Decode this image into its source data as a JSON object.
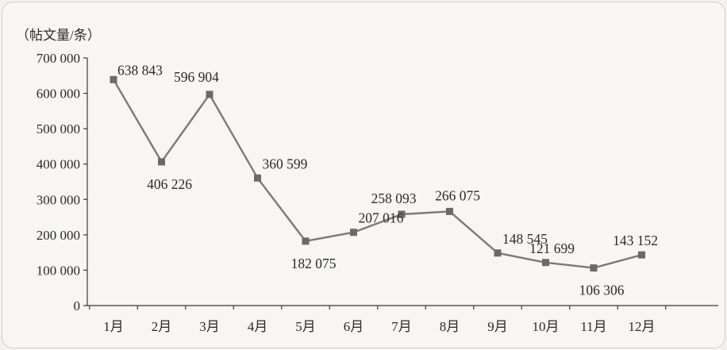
{
  "chart_data": {
    "type": "line",
    "unit_label": "（帖文量/条）",
    "categories": [
      "1月",
      "2月",
      "3月",
      "4月",
      "5月",
      "6月",
      "7月",
      "8月",
      "9月",
      "10月",
      "11月",
      "12月"
    ],
    "values": [
      638843,
      406226,
      596904,
      360599,
      182075,
      207016,
      258093,
      266075,
      148545,
      121699,
      106306,
      143152
    ],
    "data_labels": [
      "638 843",
      "406 226",
      "596 904",
      "360 599",
      "182 075",
      "207 016",
      "258 093",
      "266 075",
      "148 545",
      "121 699",
      "106 306",
      "143 152"
    ],
    "y_ticks": [
      0,
      100000,
      200000,
      300000,
      400000,
      500000,
      600000,
      700000
    ],
    "y_tick_labels": [
      "0",
      "100 000",
      "200 000",
      "300 000",
      "400 000",
      "500 000",
      "600 000",
      "700 000"
    ],
    "ylim": [
      0,
      700000
    ],
    "grid": false,
    "legend": "none",
    "colors": {
      "line": "#7a7a7a",
      "marker": "#6a6a6a",
      "axis": "#3a3a3a",
      "text": "#2a2a2a"
    }
  }
}
